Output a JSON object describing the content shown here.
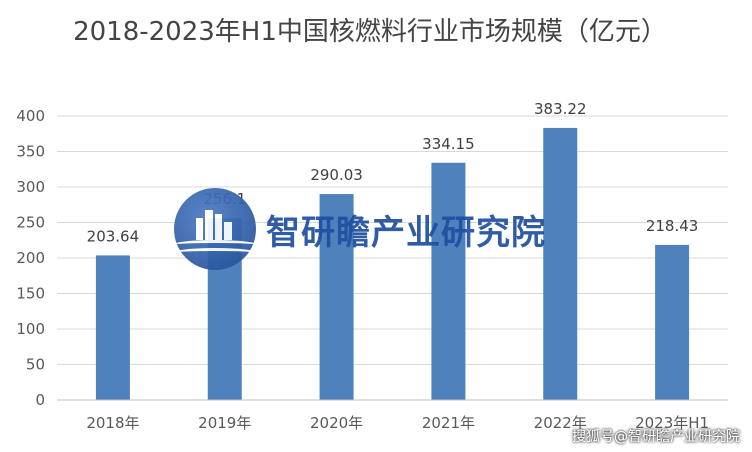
{
  "chart_data": {
    "type": "bar",
    "title": "2018-2023年H1中国核燃料行业市场规模（亿元）",
    "categories": [
      "2018年",
      "2019年",
      "2020年",
      "2021年",
      "2022年",
      "2023年H1"
    ],
    "values": [
      203.64,
      256.1,
      290.03,
      334.15,
      383.22,
      218.43
    ],
    "data_labels": [
      "203.64",
      "256.1",
      "290.03",
      "334.15",
      "383.22",
      "218.43"
    ],
    "yticks": [
      "0",
      "50",
      "100",
      "150",
      "200",
      "250",
      "300",
      "350",
      "400"
    ],
    "ylim": [
      0,
      400
    ],
    "grid": true,
    "bar_color": "#4f81bd"
  },
  "watermark": {
    "text": "智研瞻产业研究院"
  },
  "footer": {
    "credit": "搜狐号@智研瞻产业研究院"
  }
}
